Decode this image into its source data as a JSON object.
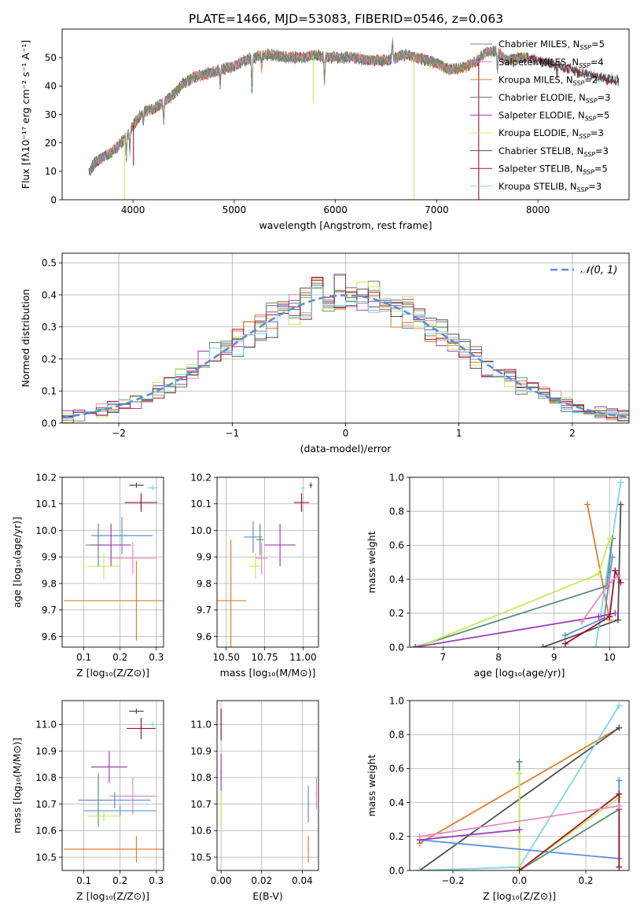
{
  "figure_title": "PLATE=1466, MJD=53083, FIBERID=0546, z=0.063",
  "colors": {
    "ch_miles": "#5b8f78",
    "sa_miles": "#e889c1",
    "kr_miles": "#dd7f28",
    "ch_elodie": "#5a7d5a",
    "sa_elodie": "#9b3fb5",
    "kr_elodie": "#c9e85a",
    "ch_stelib": "#4f4f4f",
    "sa_stelib": "#a1162a",
    "kr_stelib": "#7fd6de",
    "blue": "#5a8fd8",
    "grid": "#b0b0b0"
  },
  "chart_data": [
    {
      "type": "line",
      "id": "spectrum",
      "xlabel": "wavelength [Angstrom, rest frame]",
      "ylabel": "Flux [fλ10⁻¹⁷ erg cm⁻² s⁻¹ A⁻¹]",
      "xlim": [
        3300,
        8900
      ],
      "ylim": [
        0,
        60
      ],
      "xticks": [
        4000,
        5000,
        6000,
        7000,
        8000
      ],
      "yticks": [
        0,
        10,
        20,
        30,
        40,
        50
      ],
      "legend": {
        "placement": "top-right",
        "entries": [
          {
            "label": "Chabrier MILES, N",
            "sub": "SSP",
            "suffix": "=5",
            "color": "ch_miles"
          },
          {
            "label": "Salpeter MILES, N",
            "sub": "SSP",
            "suffix": "=4",
            "color": "sa_miles"
          },
          {
            "label": "Kroupa MILES, N",
            "sub": "SSP",
            "suffix": "=2",
            "color": "kr_miles"
          },
          {
            "label": "Chabrier ELODIE, N",
            "sub": "SSP",
            "suffix": "=3",
            "color": "ch_elodie"
          },
          {
            "label": "Salpeter ELODIE, N",
            "sub": "SSP",
            "suffix": "=5",
            "color": "sa_elodie"
          },
          {
            "label": "Kroupa ELODIE, N",
            "sub": "SSP",
            "suffix": "=3",
            "color": "kr_elodie"
          },
          {
            "label": "Chabrier STELIB, N",
            "sub": "SSP",
            "suffix": "=3",
            "color": "ch_stelib"
          },
          {
            "label": "Salpeter STELIB, N",
            "sub": "SSP",
            "suffix": "=5",
            "color": "sa_stelib"
          },
          {
            "label": "Kroupa STELIB, N",
            "sub": "SSP",
            "suffix": "=3",
            "color": "kr_stelib"
          }
        ]
      },
      "continuum": [
        [
          3560,
          9
        ],
        [
          3620,
          13
        ],
        [
          3700,
          15
        ],
        [
          3800,
          17
        ],
        [
          3880,
          20
        ],
        [
          3950,
          23
        ],
        [
          4000,
          26
        ],
        [
          4100,
          31
        ],
        [
          4200,
          32
        ],
        [
          4300,
          34
        ],
        [
          4400,
          37
        ],
        [
          4500,
          41
        ],
        [
          4600,
          43
        ],
        [
          4700,
          44
        ],
        [
          4800,
          45
        ],
        [
          4900,
          46
        ],
        [
          5000,
          47
        ],
        [
          5100,
          49
        ],
        [
          5200,
          50
        ],
        [
          5300,
          51
        ],
        [
          5400,
          51
        ],
        [
          5500,
          50
        ],
        [
          5600,
          50
        ],
        [
          5700,
          50
        ],
        [
          5800,
          51
        ],
        [
          5900,
          50
        ],
        [
          6000,
          50
        ],
        [
          6100,
          50
        ],
        [
          6200,
          50
        ],
        [
          6300,
          49
        ],
        [
          6400,
          49
        ],
        [
          6500,
          49
        ],
        [
          6600,
          50
        ],
        [
          6700,
          51
        ],
        [
          6800,
          50
        ],
        [
          6900,
          49
        ],
        [
          7000,
          48
        ],
        [
          7100,
          46
        ],
        [
          7200,
          46
        ],
        [
          7300,
          47
        ],
        [
          7400,
          49
        ],
        [
          7500,
          52
        ],
        [
          7600,
          52
        ],
        [
          7700,
          49
        ],
        [
          7800,
          50
        ],
        [
          7900,
          50
        ],
        [
          8000,
          49
        ],
        [
          8100,
          48
        ],
        [
          8200,
          47
        ],
        [
          8300,
          46
        ],
        [
          8400,
          45
        ],
        [
          8500,
          44
        ],
        [
          8600,
          43
        ],
        [
          8700,
          42
        ]
      ],
      "absorption_lines": [
        [
          3934,
          8
        ],
        [
          3969,
          7
        ],
        [
          4102,
          4
        ],
        [
          4304,
          7
        ],
        [
          4861,
          5
        ],
        [
          5175,
          12
        ],
        [
          5270,
          4
        ],
        [
          5892,
          8
        ],
        [
          6563,
          -7
        ],
        [
          7600,
          6
        ],
        [
          8190,
          3
        ]
      ],
      "drops": [
        {
          "x": 3915,
          "y_to": 0,
          "color": "kr_elodie"
        },
        {
          "x": 4005,
          "y_to": 12,
          "color": "sa_stelib"
        },
        {
          "x": 5780,
          "y_to": 34,
          "color": "kr_elodie"
        },
        {
          "x": 6775,
          "y_to": 0,
          "color": "kr_elodie"
        },
        {
          "x": 7415,
          "y_to": 0,
          "color": "sa_stelib"
        }
      ]
    },
    {
      "type": "histogram",
      "id": "residuals",
      "xlabel": "(data-model)/error",
      "ylabel": "Normed distribution",
      "xlim": [
        -2.5,
        2.5
      ],
      "ylim": [
        0,
        0.53
      ],
      "xticks": [
        -2,
        -1,
        0,
        1,
        2
      ],
      "yticks": [
        0.0,
        0.1,
        0.2,
        0.3,
        0.4,
        0.5
      ],
      "bin_width": 0.1,
      "legend": {
        "placement": "top-right",
        "label": "𝒩(0, 1)",
        "color": "blue"
      },
      "series_colors": [
        "ch_miles",
        "sa_miles",
        "kr_miles",
        "ch_elodie",
        "sa_elodie",
        "kr_elodie",
        "ch_stelib",
        "sa_stelib",
        "kr_stelib"
      ]
    },
    {
      "type": "errorbar",
      "id": "age-vs-z",
      "xlabel": "Z [log₁₀(Z/Z⊙)]",
      "ylabel": "age  [log₁₀(age/yr)]",
      "xlim": [
        0.04,
        0.32
      ],
      "ylim": [
        9.56,
        10.2
      ],
      "xticks": [
        0.1,
        0.2,
        0.3
      ],
      "yticks": [
        9.6,
        9.7,
        9.8,
        9.9,
        10.0,
        10.1,
        10.2
      ],
      "points": [
        {
          "x": 0.245,
          "xerr": 0.02,
          "y": 10.17,
          "yerr": 0.01,
          "color": "ch_stelib"
        },
        {
          "x": 0.29,
          "xerr": 0.015,
          "y": 10.16,
          "yerr": 0.01,
          "color": "kr_stelib"
        },
        {
          "x": 0.258,
          "xerr": 0.045,
          "y": 10.105,
          "yerr": 0.035,
          "color": "sa_stelib"
        },
        {
          "x": 0.205,
          "xerr": 0.085,
          "y": 9.98,
          "yerr": 0.07,
          "color": "blue"
        },
        {
          "x": 0.14,
          "xerr": 0.035,
          "y": 9.945,
          "yerr": 0.08,
          "color": "ch_miles"
        },
        {
          "x": 0.175,
          "xerr": 0.055,
          "y": 9.945,
          "yerr": 0.08,
          "color": "sa_elodie"
        },
        {
          "x": 0.235,
          "xerr": 0.065,
          "y": 9.895,
          "yerr": 0.06,
          "color": "sa_miles"
        },
        {
          "x": 0.155,
          "xerr": 0.045,
          "y": 9.865,
          "yerr": 0.05,
          "color": "kr_elodie"
        },
        {
          "x": 0.245,
          "xerr": 0.2,
          "y": 9.735,
          "yerr": 0.15,
          "color": "kr_miles"
        }
      ]
    },
    {
      "type": "errorbar",
      "id": "age-vs-mass",
      "xlabel": "mass [log₁₀(M/M⊙)]",
      "ylabel": "",
      "xlim": [
        10.44,
        11.1
      ],
      "ylim": [
        9.56,
        10.2
      ],
      "xticks": [
        10.5,
        10.75,
        11.0
      ],
      "yticks": [
        9.6,
        9.7,
        9.8,
        9.9,
        10.0,
        10.1,
        10.2
      ],
      "points": [
        {
          "x": 11.05,
          "xerr": 0.01,
          "y": 10.17,
          "yerr": 0.01,
          "color": "ch_stelib"
        },
        {
          "x": 11.0,
          "xerr": 0.01,
          "y": 10.16,
          "yerr": 0.01,
          "color": "kr_stelib"
        },
        {
          "x": 10.99,
          "xerr": 0.05,
          "y": 10.105,
          "yerr": 0.035,
          "color": "sa_stelib"
        },
        {
          "x": 10.675,
          "xerr": 0.06,
          "y": 9.975,
          "yerr": 0.06,
          "color": "blue"
        },
        {
          "x": 10.72,
          "xerr": 0.025,
          "y": 9.965,
          "yerr": 0.06,
          "color": "ch_miles"
        },
        {
          "x": 10.85,
          "xerr": 0.1,
          "y": 9.945,
          "yerr": 0.08,
          "color": "sa_elodie"
        },
        {
          "x": 10.73,
          "xerr": 0.04,
          "y": 9.895,
          "yerr": 0.06,
          "color": "sa_miles"
        },
        {
          "x": 10.69,
          "xerr": 0.04,
          "y": 9.865,
          "yerr": 0.05,
          "color": "kr_elodie"
        },
        {
          "x": 10.53,
          "xerr": 0.1,
          "y": 9.735,
          "yerr": 0.23,
          "color": "kr_miles"
        }
      ]
    },
    {
      "type": "line",
      "id": "weight-vs-age",
      "xlabel": "age  [log₁₀(age/yr)]",
      "ylabel": "mass weight",
      "xlim": [
        6.4,
        10.35
      ],
      "ylim": [
        0,
        1.0
      ],
      "xticks": [
        7,
        8,
        9,
        10
      ],
      "yticks": [
        0.0,
        0.2,
        0.4,
        0.6,
        0.8,
        1.0
      ],
      "series": [
        {
          "color": "kr_miles",
          "points": [
            [
              9.6,
              0.84
            ],
            [
              10.0,
              0.16
            ]
          ]
        },
        {
          "color": "ch_stelib",
          "points": [
            [
              8.8,
              0.0
            ],
            [
              10.15,
              0.16
            ],
            [
              10.2,
              0.84
            ]
          ]
        },
        {
          "color": "kr_stelib",
          "points": [
            [
              9.75,
              0.0
            ],
            [
              10.2,
              0.97
            ]
          ]
        },
        {
          "color": "ch_miles",
          "points": [
            [
              6.5,
              0.0
            ],
            [
              9.95,
              0.36
            ],
            [
              10.05,
              0.64
            ]
          ]
        },
        {
          "color": "kr_elodie",
          "points": [
            [
              6.55,
              0.0
            ],
            [
              9.8,
              0.43
            ],
            [
              10.0,
              0.64
            ]
          ]
        },
        {
          "color": "blue",
          "points": [
            [
              9.2,
              0.07
            ],
            [
              9.9,
              0.17
            ],
            [
              10.05,
              0.53
            ]
          ]
        },
        {
          "color": "sa_elodie",
          "points": [
            [
              6.5,
              0.0
            ],
            [
              9.8,
              0.18
            ],
            [
              10.1,
              0.2
            ]
          ]
        },
        {
          "color": "sa_stelib",
          "points": [
            [
              9.2,
              0.02
            ],
            [
              10.0,
              0.18
            ],
            [
              10.1,
              0.45
            ],
            [
              10.2,
              0.38
            ]
          ]
        },
        {
          "color": "sa_miles",
          "points": [
            [
              9.5,
              0.15
            ],
            [
              10.0,
              0.38
            ],
            [
              10.15,
              0.42
            ]
          ]
        }
      ]
    },
    {
      "type": "errorbar",
      "id": "mass-vs-z",
      "xlabel": "Z [log₁₀(Z/Z⊙)]",
      "ylabel": "mass [log₁₀(M/M⊙)]",
      "xlim": [
        0.04,
        0.32
      ],
      "ylim": [
        10.45,
        11.09
      ],
      "xticks": [
        0.1,
        0.2,
        0.3
      ],
      "yticks": [
        10.5,
        10.6,
        10.7,
        10.8,
        10.9,
        11.0
      ],
      "points": [
        {
          "x": 0.245,
          "xerr": 0.02,
          "y": 11.05,
          "yerr": 0.01,
          "color": "ch_stelib"
        },
        {
          "x": 0.29,
          "xerr": 0.01,
          "y": 11.0,
          "yerr": 0.01,
          "color": "kr_stelib"
        },
        {
          "x": 0.258,
          "xerr": 0.04,
          "y": 10.985,
          "yerr": 0.04,
          "color": "sa_stelib"
        },
        {
          "x": 0.17,
          "xerr": 0.05,
          "y": 10.84,
          "yerr": 0.06,
          "color": "sa_elodie"
        },
        {
          "x": 0.235,
          "xerr": 0.065,
          "y": 10.73,
          "yerr": 0.07,
          "color": "sa_miles"
        },
        {
          "x": 0.14,
          "xerr": 0.035,
          "y": 10.715,
          "yerr": 0.1,
          "color": "ch_miles"
        },
        {
          "x": 0.185,
          "xerr": 0.1,
          "y": 10.715,
          "yerr": 0.03,
          "color": "blue"
        },
        {
          "x": 0.2,
          "xerr": 0.1,
          "y": 10.675,
          "yerr": 0.02,
          "color": "blue"
        },
        {
          "x": 0.155,
          "xerr": 0.045,
          "y": 10.655,
          "yerr": 0.02,
          "color": "kr_elodie"
        },
        {
          "x": 0.245,
          "xerr": 0.2,
          "y": 10.53,
          "yerr": 0.05,
          "color": "kr_miles"
        }
      ]
    },
    {
      "type": "errorbar",
      "id": "mass-vs-ebv",
      "xlabel": "E(B-V)",
      "ylabel": "",
      "xlim": [
        -0.002,
        0.048
      ],
      "ylim": [
        10.45,
        11.09
      ],
      "xticks": [
        0.0,
        0.02,
        0.04
      ],
      "yticks": [
        10.5,
        10.6,
        10.7,
        10.8,
        10.9,
        11.0
      ],
      "points": [
        {
          "x": 0.0,
          "xerr": 0.0003,
          "y": 11.0,
          "yerr": 0.06,
          "color": "sa_stelib"
        },
        {
          "x": 0.0,
          "xerr": 0.0003,
          "y": 10.82,
          "yerr": 0.07,
          "color": "sa_elodie"
        },
        {
          "x": 0.0,
          "xerr": 0.0003,
          "y": 10.68,
          "yerr": 0.06,
          "color": "kr_elodie"
        },
        {
          "x": 0.043,
          "xerr": 0.0003,
          "y": 10.7,
          "yerr": 0.07,
          "color": "blue"
        },
        {
          "x": 0.043,
          "xerr": 0.0003,
          "y": 10.53,
          "yerr": 0.05,
          "color": "kr_miles"
        },
        {
          "x": 0.047,
          "xerr": 0.0003,
          "y": 10.74,
          "yerr": 0.06,
          "color": "sa_miles"
        }
      ]
    },
    {
      "type": "line",
      "id": "weight-vs-z",
      "xlabel": "Z [log₁₀(Z/Z⊙)]",
      "ylabel": "mass weight",
      "xlim": [
        -0.33,
        0.33
      ],
      "ylim": [
        0,
        1.0
      ],
      "xticks": [
        -0.2,
        0.0,
        0.2
      ],
      "yticks": [
        0.0,
        0.2,
        0.4,
        0.6,
        0.8,
        1.0
      ],
      "series": [
        {
          "color": "kr_miles",
          "points": [
            [
              -0.3,
              0.16
            ],
            [
              0.3,
              0.84
            ]
          ]
        },
        {
          "color": "ch_stelib",
          "points": [
            [
              -0.3,
              0.0
            ],
            [
              0.3,
              0.84
            ]
          ]
        },
        {
          "color": "kr_stelib",
          "points": [
            [
              -0.3,
              0.0
            ],
            [
              0.0,
              0.02
            ],
            [
              0.3,
              0.97
            ]
          ]
        },
        {
          "color": "ch_miles",
          "points": [
            [
              0.0,
              0.64
            ],
            [
              0.0,
              0.0
            ],
            [
              0.3,
              0.36
            ]
          ]
        },
        {
          "color": "kr_elodie",
          "points": [
            [
              0.0,
              0.57
            ],
            [
              0.0,
              0.0
            ],
            [
              0.3,
              0.43
            ]
          ]
        },
        {
          "color": "blue",
          "points": [
            [
              -0.3,
              0.18
            ],
            [
              0.3,
              0.07
            ],
            [
              0.3,
              0.53
            ]
          ]
        },
        {
          "color": "sa_elodie",
          "points": [
            [
              -0.3,
              0.18
            ],
            [
              0.0,
              0.24
            ]
          ]
        },
        {
          "color": "sa_stelib",
          "points": [
            [
              0.0,
              0.0
            ],
            [
              0.3,
              0.45
            ],
            [
              0.3,
              0.02
            ]
          ]
        },
        {
          "color": "sa_miles",
          "points": [
            [
              -0.3,
              0.2
            ],
            [
              0.3,
              0.38
            ]
          ]
        }
      ]
    }
  ]
}
